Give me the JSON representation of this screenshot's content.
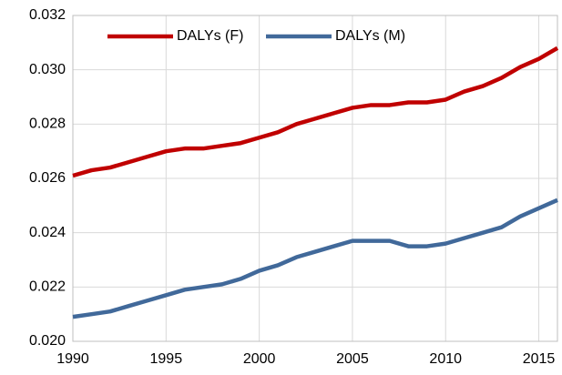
{
  "chart_data": {
    "type": "line",
    "x": [
      1990,
      1991,
      1992,
      1993,
      1994,
      1995,
      1996,
      1997,
      1998,
      1999,
      2000,
      2001,
      2002,
      2003,
      2004,
      2005,
      2006,
      2007,
      2008,
      2009,
      2010,
      2011,
      2012,
      2013,
      2014,
      2015,
      2016
    ],
    "series": [
      {
        "name": "DALYs (F)",
        "color": "#c00000",
        "values": [
          0.0261,
          0.0263,
          0.0264,
          0.0266,
          0.0268,
          0.027,
          0.0271,
          0.0271,
          0.0272,
          0.0273,
          0.0275,
          0.0277,
          0.028,
          0.0282,
          0.0284,
          0.0286,
          0.0287,
          0.0287,
          0.0288,
          0.0288,
          0.0289,
          0.0292,
          0.0294,
          0.0297,
          0.0301,
          0.0304,
          0.0308
        ]
      },
      {
        "name": "DALYs (M)",
        "color": "#41699a",
        "values": [
          0.0209,
          0.021,
          0.0211,
          0.0213,
          0.0215,
          0.0217,
          0.0219,
          0.022,
          0.0221,
          0.0223,
          0.0226,
          0.0228,
          0.0231,
          0.0233,
          0.0235,
          0.0237,
          0.0237,
          0.0237,
          0.0235,
          0.0235,
          0.0236,
          0.0238,
          0.024,
          0.0242,
          0.0246,
          0.0249,
          0.0252
        ]
      }
    ],
    "xlim": [
      1990,
      2016
    ],
    "xticks": [
      1990,
      1995,
      2000,
      2005,
      2010,
      2015
    ],
    "ylim": [
      0.02,
      0.032
    ],
    "yticks": [
      {
        "value": 0.02,
        "label": "0.020"
      },
      {
        "value": 0.022,
        "label": "0.022"
      },
      {
        "value": 0.024,
        "label": "0.024"
      },
      {
        "value": 0.026,
        "label": "0.026"
      },
      {
        "value": 0.028,
        "label": "0.028"
      },
      {
        "value": 0.03,
        "label": "0.030"
      },
      {
        "value": 0.032,
        "label": "0.032"
      }
    ],
    "grid": true,
    "legend": "top"
  }
}
